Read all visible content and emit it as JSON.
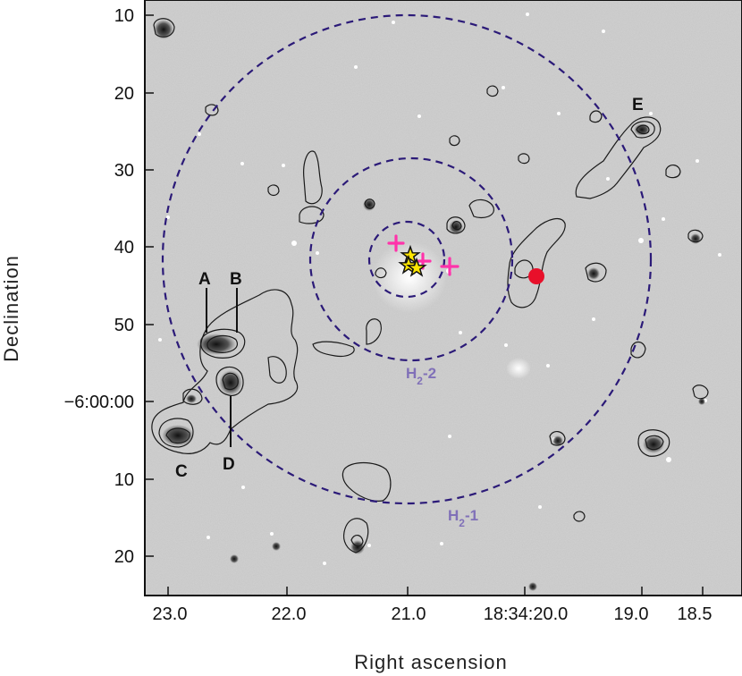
{
  "axes": {
    "xlabel": "Right ascension",
    "ylabel": "Declination",
    "xticks": [
      "23.0",
      "22.0",
      "21.0",
      "18:34:20.0",
      "19.0",
      "18.5"
    ],
    "yticks": [
      "10",
      "20",
      "30",
      "40",
      "50",
      "−6:00:00",
      "10",
      "20"
    ]
  },
  "source_labels": [
    "A",
    "B",
    "C",
    "D",
    "E"
  ],
  "ring_labels": {
    "outer": "H",
    "outer_sub": "2",
    "outer_suffix": "-1",
    "inner": "H",
    "inner_sub": "2",
    "inner_suffix": "-2"
  },
  "markers": {
    "stars": 3,
    "crosses": 3,
    "red_circle": 1
  },
  "colors": {
    "background": "#c9c9c9",
    "contour": "#1a1a1a",
    "ring": "#2b1a78",
    "cross": "#ff33aa",
    "star_fill": "#ffe600",
    "red_dot": "#e8102a",
    "ring_label": "#8070b8"
  }
}
